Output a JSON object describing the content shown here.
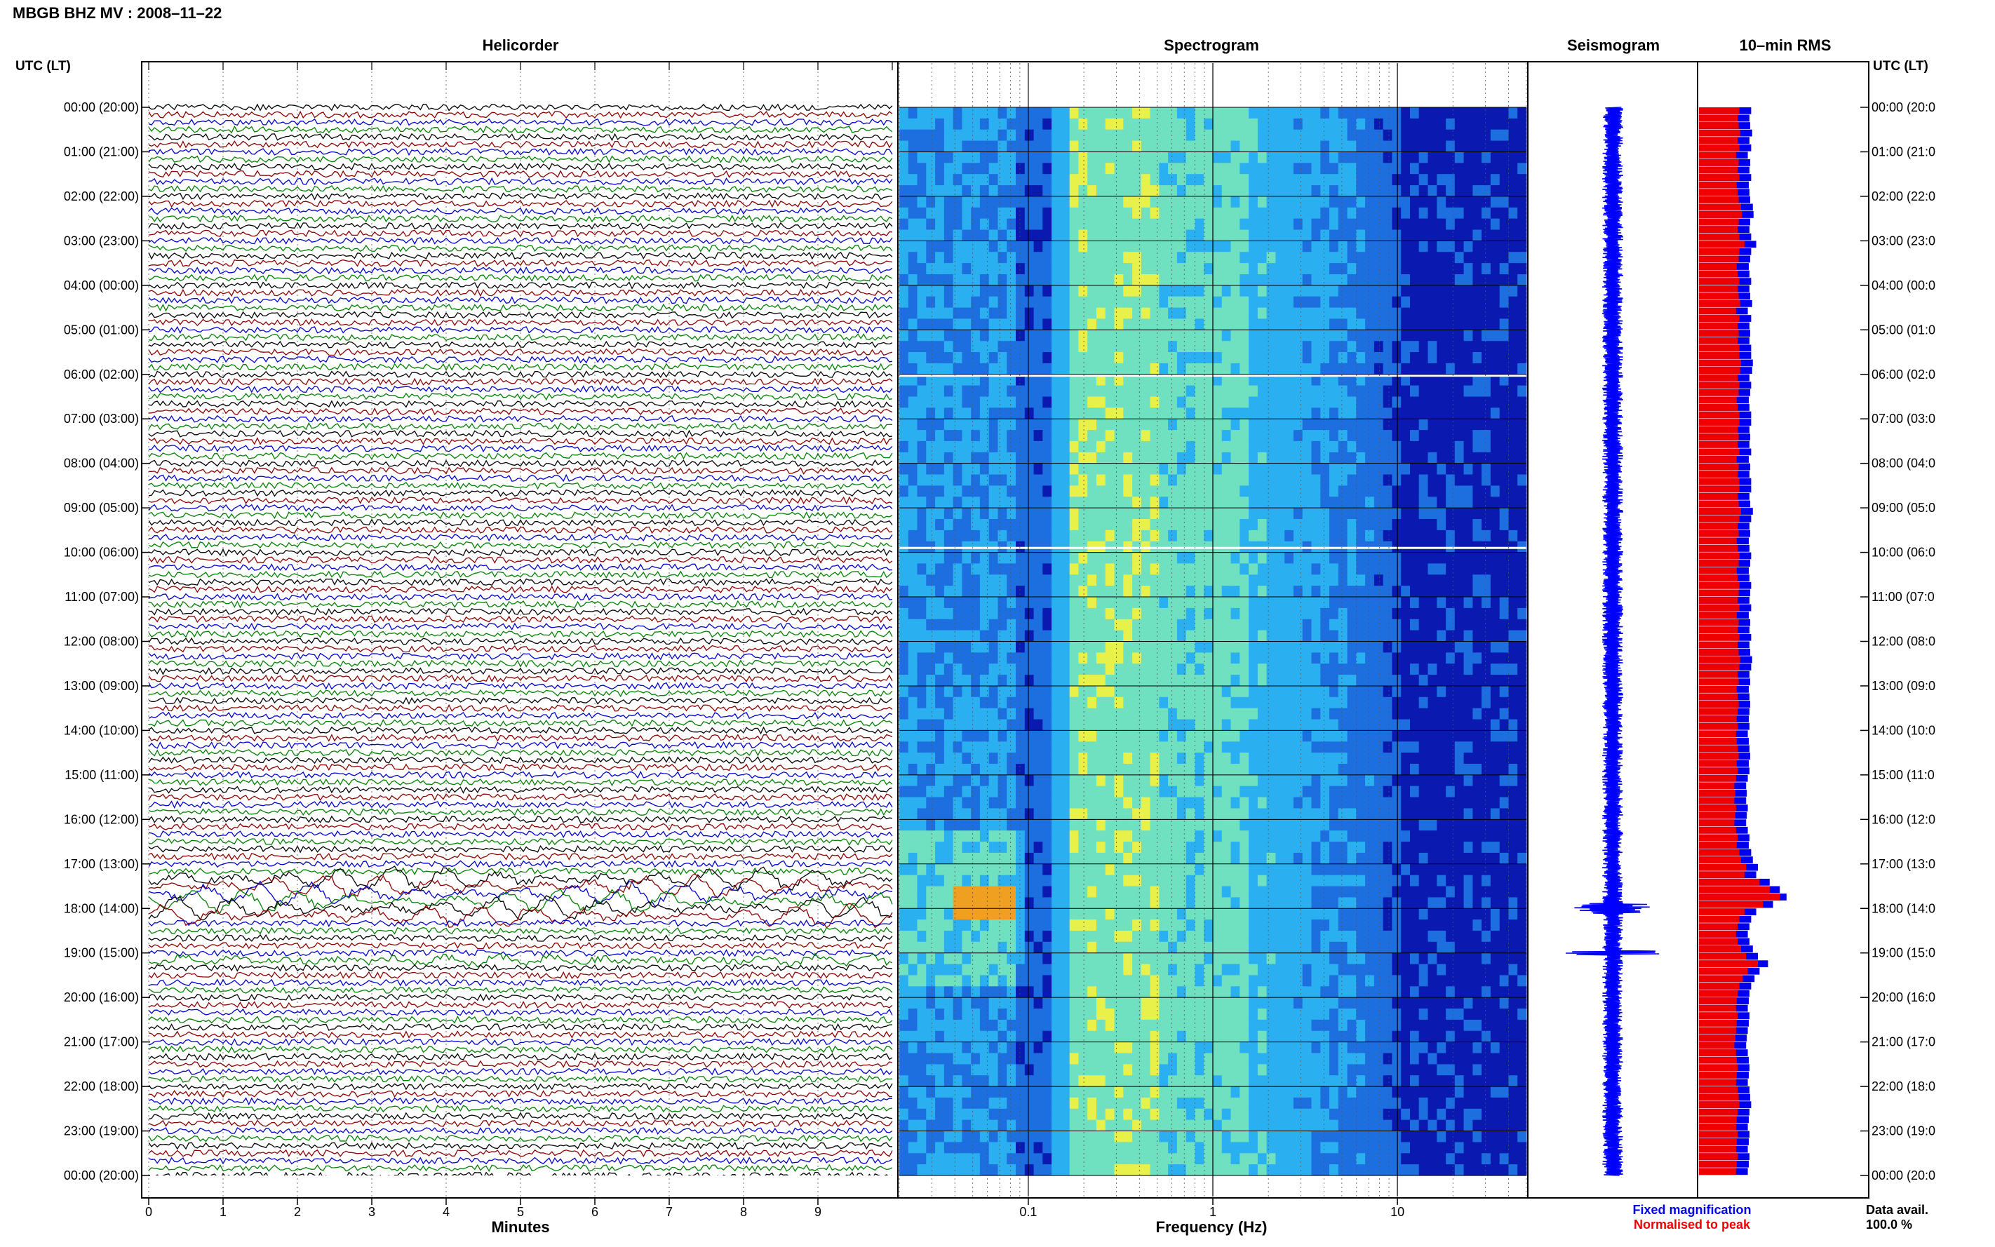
{
  "page_title": "MBGB BHZ MV : 2008–11–22",
  "left_time_header": "UTC (LT)",
  "right_time_header": "UTC (LT)",
  "panels": {
    "helicorder_title": "Helicorder",
    "spectrogram_title": "Spectrogram",
    "seismogram_title": "Seismogram",
    "rms_title": "10–min RMS"
  },
  "time_labels": [
    "00:00 (20:00)",
    "01:00 (21:00)",
    "02:00 (22:00)",
    "03:00 (23:00)",
    "04:00 (00:00)",
    "05:00 (01:00)",
    "06:00 (02:00)",
    "07:00 (03:00)",
    "08:00 (04:00)",
    "09:00 (05:00)",
    "10:00 (06:00)",
    "11:00 (07:00)",
    "12:00 (08:00)",
    "13:00 (09:00)",
    "14:00 (10:00)",
    "15:00 (11:00)",
    "16:00 (12:00)",
    "17:00 (13:00)",
    "18:00 (14:00)",
    "19:00 (15:00)",
    "20:00 (16:00)",
    "21:00 (17:00)",
    "22:00 (18:00)",
    "23:00 (19:00)",
    "00:00 (20:00)"
  ],
  "right_time_labels": [
    "00:00 (20:0",
    "01:00 (21:0",
    "02:00 (22:0",
    "03:00 (23:0",
    "04:00 (00:0",
    "05:00 (01:0",
    "06:00 (02:0",
    "07:00 (03:0",
    "08:00 (04:0",
    "09:00 (05:0",
    "10:00 (06:0",
    "11:00 (07:0",
    "12:00 (08:0",
    "13:00 (09:0",
    "14:00 (10:0",
    "15:00 (11:0",
    "16:00 (12:0",
    "17:00 (13:0",
    "18:00 (14:0",
    "19:00 (15:0",
    "20:00 (16:0",
    "21:00 (17:0",
    "22:00 (18:0",
    "23:00 (19:0",
    "00:00 (20:0"
  ],
  "helicorder_xlabel": "Minutes",
  "spectrogram_xlabel": "Frequency (Hz)",
  "legend": {
    "fixed": "Fixed magnification",
    "normalised": "Normalised to peak",
    "fixed_color": "#0000ee",
    "normalised_color": "#ee0000"
  },
  "data_avail_label": "Data avail.",
  "data_avail_value": "100.0 %",
  "chart_data": [
    {
      "type": "line",
      "title": "Helicorder",
      "xlabel": "Minutes",
      "x_ticks": [
        "0",
        "1",
        "2",
        "3",
        "4",
        "5",
        "6",
        "7",
        "8",
        "9"
      ],
      "xlim": [
        0,
        10
      ],
      "traces_per_hour": 6,
      "trace_colors": [
        "#000000",
        "#8b0000",
        "#0000cc",
        "#008000"
      ],
      "events": [
        {
          "start_hour": 17.4,
          "end_hour": 18.1,
          "label": "long-period oscillation"
        },
        {
          "start_hour": 19.0,
          "end_hour": 19.1,
          "label": "burst"
        }
      ]
    },
    {
      "type": "heatmap",
      "title": "Spectrogram",
      "xlabel": "Frequency (Hz)",
      "x_scale": "log",
      "x_ticks": [
        "0.1",
        "1",
        "10"
      ],
      "xlim": [
        0.02,
        50
      ],
      "colormap": [
        "#0a1ab0",
        "#1d6fe0",
        "#2ab0f0",
        "#6fe0c0",
        "#e8f04a",
        "#f0a020",
        "#e03010"
      ]
    },
    {
      "type": "line",
      "title": "Seismogram",
      "color": "#0000ff",
      "events_hours": [
        18.0,
        19.0
      ]
    },
    {
      "type": "bar",
      "title": "10–min RMS",
      "series": [
        {
          "name": "Fixed magnification",
          "color": "#0000ee",
          "values": [
            1.55,
            1.5,
            1.52,
            1.58,
            1.5,
            1.55,
            1.45,
            1.52,
            1.5,
            1.55,
            1.48,
            1.5,
            1.52,
            1.6,
            1.62,
            1.52,
            1.5,
            1.55,
            1.7,
            1.55,
            1.52,
            1.48,
            1.5,
            1.55,
            1.5,
            1.52,
            1.58,
            1.45,
            1.55,
            1.5,
            1.52,
            1.5,
            1.55,
            1.55,
            1.6,
            1.58,
            1.5,
            1.55,
            1.52,
            1.48,
            1.5,
            1.55,
            1.55,
            1.5,
            1.52,
            1.5,
            1.55,
            1.48,
            1.52,
            1.5,
            1.55,
            1.55,
            1.5,
            1.52,
            1.6,
            1.55,
            1.5,
            1.52,
            1.48,
            1.5,
            1.55,
            1.52,
            1.48,
            1.5,
            1.55,
            1.52,
            1.5,
            1.55,
            1.48,
            1.52,
            1.5,
            1.55,
            1.5,
            1.52,
            1.58,
            1.55,
            1.5,
            1.52,
            1.48,
            1.5,
            1.52,
            1.5,
            1.48,
            1.5,
            1.45,
            1.48,
            1.5,
            1.52,
            1.48,
            1.5,
            1.45,
            1.4,
            1.42,
            1.4,
            1.45,
            1.42,
            1.4,
            1.45,
            1.5,
            1.48,
            1.55,
            1.6,
            1.75,
            1.7,
            2.1,
            2.4,
            2.6,
            2.2,
            1.7,
            1.55,
            1.5,
            1.45,
            1.5,
            1.6,
            1.75,
            2.05,
            1.8,
            1.65,
            1.55,
            1.5,
            1.48,
            1.45,
            1.5,
            1.48,
            1.45,
            1.42,
            1.4,
            1.45,
            1.48,
            1.5,
            1.48,
            1.45,
            1.5,
            1.52,
            1.55,
            1.5,
            1.48,
            1.45,
            1.5,
            1.48,
            1.45,
            1.5,
            1.48,
            1.45
          ]
        },
        {
          "name": "Normalised to peak",
          "color": "#ee0000",
          "values": [
            1.2,
            1.15,
            1.18,
            1.22,
            1.15,
            1.2,
            1.1,
            1.18,
            1.15,
            1.2,
            1.12,
            1.15,
            1.18,
            1.25,
            1.28,
            1.18,
            1.15,
            1.2,
            1.35,
            1.2,
            1.18,
            1.12,
            1.15,
            1.2,
            1.15,
            1.18,
            1.22,
            1.1,
            1.2,
            1.15,
            1.18,
            1.15,
            1.2,
            1.2,
            1.25,
            1.22,
            1.15,
            1.2,
            1.18,
            1.12,
            1.15,
            1.2,
            1.2,
            1.15,
            1.18,
            1.15,
            1.2,
            1.12,
            1.18,
            1.15,
            1.2,
            1.2,
            1.15,
            1.18,
            1.25,
            1.2,
            1.15,
            1.18,
            1.12,
            1.15,
            1.2,
            1.18,
            1.12,
            1.15,
            1.2,
            1.18,
            1.15,
            1.2,
            1.12,
            1.18,
            1.15,
            1.2,
            1.15,
            1.18,
            1.22,
            1.2,
            1.15,
            1.18,
            1.12,
            1.15,
            1.18,
            1.15,
            1.12,
            1.15,
            1.1,
            1.12,
            1.15,
            1.18,
            1.12,
            1.15,
            1.1,
            1.05,
            1.08,
            1.05,
            1.1,
            1.08,
            1.05,
            1.1,
            1.15,
            1.12,
            1.2,
            1.25,
            1.4,
            1.35,
            1.8,
            2.1,
            2.4,
            1.9,
            1.35,
            1.2,
            1.15,
            1.1,
            1.15,
            1.25,
            1.4,
            1.75,
            1.45,
            1.3,
            1.2,
            1.15,
            1.12,
            1.1,
            1.15,
            1.12,
            1.1,
            1.08,
            1.05,
            1.1,
            1.12,
            1.15,
            1.12,
            1.1,
            1.15,
            1.18,
            1.2,
            1.15,
            1.12,
            1.1,
            1.15,
            1.12,
            1.1,
            1.15,
            1.12,
            1.1
          ]
        }
      ]
    }
  ]
}
